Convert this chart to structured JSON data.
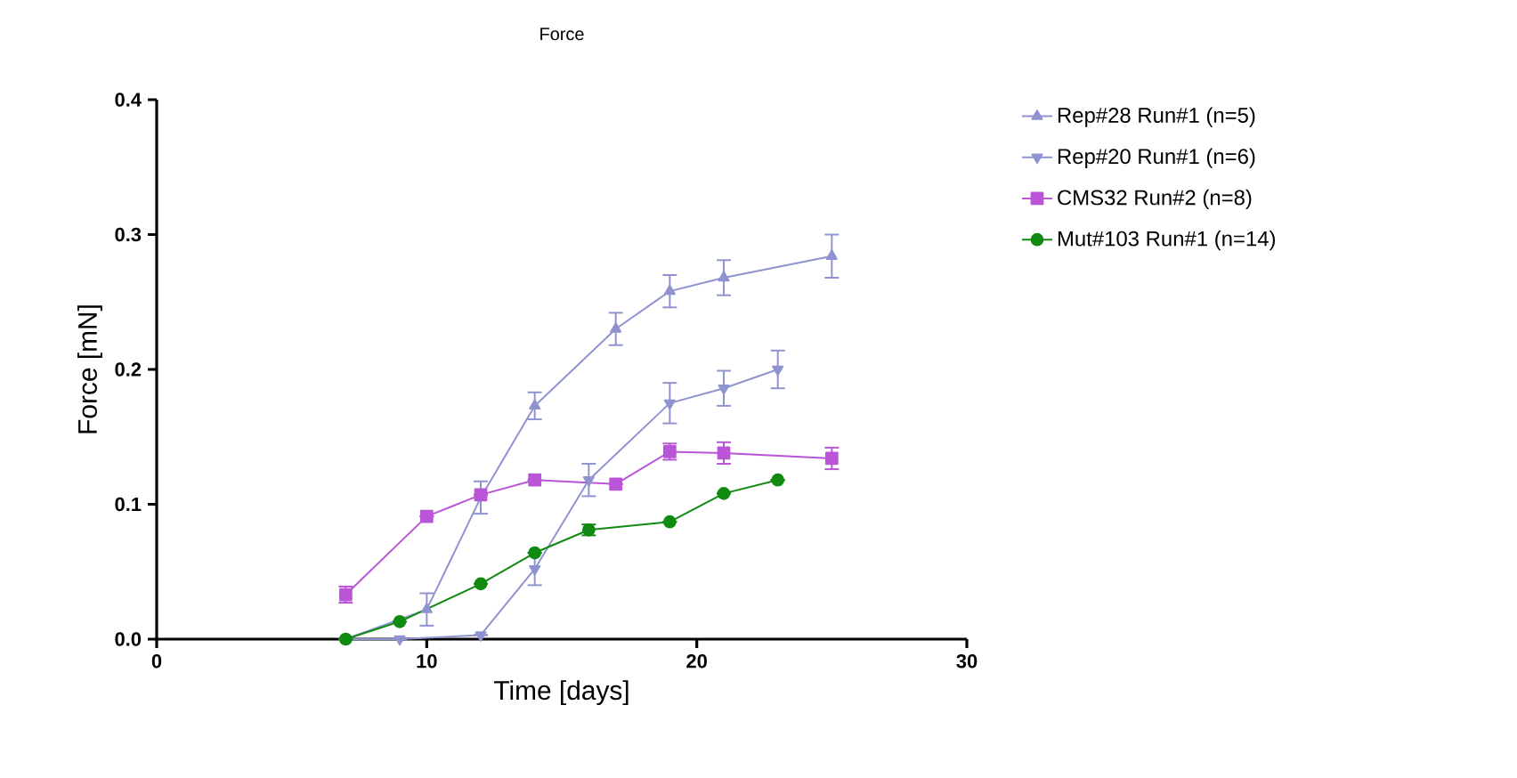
{
  "chart_data": {
    "type": "line",
    "title": "Force",
    "xlabel": "Time [days]",
    "ylabel": "Force [mN]",
    "xlim": [
      0,
      30
    ],
    "xticks": [
      0,
      10,
      20,
      30
    ],
    "ylim": [
      0,
      0.4
    ],
    "yticks": [
      {
        "value": 0,
        "label": "0.0"
      },
      {
        "value": 0.1,
        "label": "0.1"
      },
      {
        "value": 0.2,
        "label": "0.2"
      },
      {
        "value": 0.3,
        "label": "0.3"
      },
      {
        "value": 0.4,
        "label": "0.4"
      }
    ],
    "grid": false,
    "legend": "right",
    "series": [
      {
        "name": "Rep#28 Run#1 (n=5)",
        "color": "#8f93d0",
        "marker": "triangle",
        "x": [
          7,
          10,
          12,
          14,
          17,
          19,
          21,
          25
        ],
        "values": [
          0.0,
          0.022,
          0.105,
          0.173,
          0.23,
          0.258,
          0.268,
          0.284
        ],
        "errors": [
          null,
          0.012,
          0.012,
          0.01,
          0.012,
          0.012,
          0.013,
          0.016
        ]
      },
      {
        "name": "Rep#20 Run#1 (n=6)",
        "color": "#8f93d0",
        "marker": "triangle down",
        "x": [
          7,
          9,
          12,
          14,
          16,
          19,
          21,
          23
        ],
        "values": [
          0.0,
          0.0,
          0.003,
          0.052,
          0.118,
          0.175,
          0.186,
          0.2
        ],
        "errors": [
          null,
          null,
          null,
          0.012,
          0.012,
          0.015,
          0.013,
          0.014
        ]
      },
      {
        "name": "CMS32 Run#2 (n=8)",
        "color": "#b955d6",
        "marker": "square",
        "x": [
          7,
          10,
          12,
          14,
          17,
          19,
          21,
          25
        ],
        "values": [
          0.033,
          0.091,
          0.107,
          0.118,
          0.115,
          0.139,
          0.138,
          0.134
        ],
        "errors": [
          0.006,
          null,
          null,
          null,
          null,
          0.006,
          0.008,
          0.008
        ]
      },
      {
        "name": "Mut#103 Run#1 (n=14)",
        "color": "#118a11",
        "marker": "circle",
        "x": [
          7,
          9,
          12,
          14,
          16,
          19,
          21,
          23
        ],
        "values": [
          0.0,
          0.013,
          0.041,
          0.064,
          0.081,
          0.087,
          0.108,
          0.118
        ],
        "errors": [
          null,
          null,
          null,
          null,
          0.004,
          null,
          null,
          null
        ]
      }
    ]
  }
}
